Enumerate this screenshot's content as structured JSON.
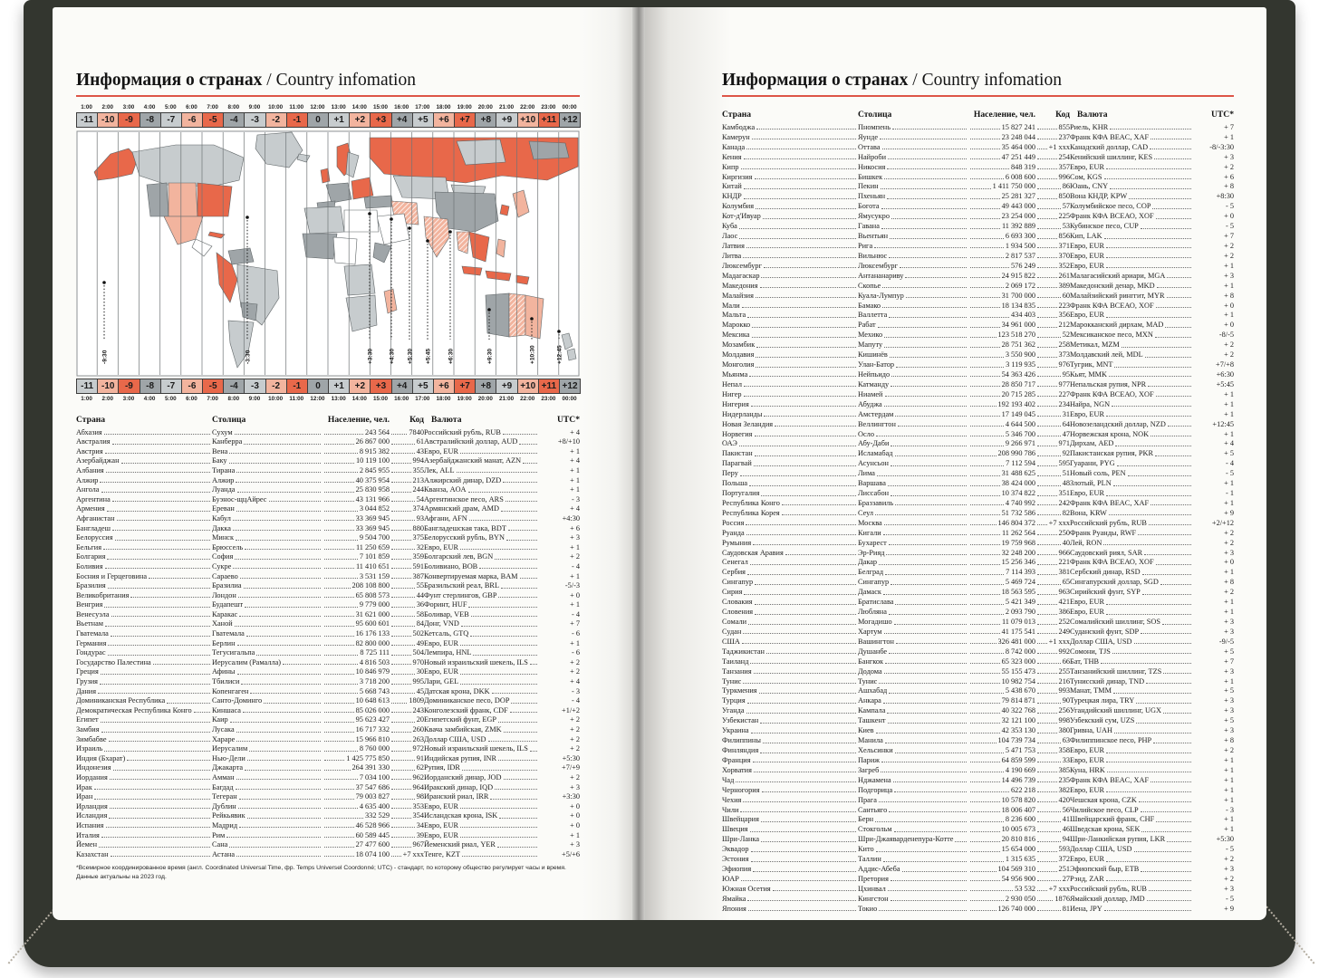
{
  "title": {
    "ru": "Информация о странах",
    "en": " / Country infomation"
  },
  "timezone_bar": {
    "times": [
      "1:00",
      "2:00",
      "3:00",
      "4:00",
      "5:00",
      "6:00",
      "7:00",
      "8:00",
      "9:00",
      "10:00",
      "11:00",
      "12:00",
      "13:00",
      "14:00",
      "15:00",
      "16:00",
      "17:00",
      "18:00",
      "19:00",
      "20:00",
      "21:00",
      "22:00",
      "23:00",
      "00:00"
    ],
    "offsets": [
      "-11",
      "-10",
      "-9",
      "-8",
      "-7",
      "-6",
      "-5",
      "-4",
      "-3",
      "-2",
      "-1",
      "0",
      "+1",
      "+2",
      "+3",
      "+4",
      "+5",
      "+6",
      "+7",
      "+8",
      "+9",
      "+10",
      "+11",
      "+12"
    ]
  },
  "map": {
    "labels": [
      "-9:30",
      "-3:30",
      "+3:30",
      "+4:30",
      "+5:30",
      "+5:45",
      "+6:30",
      "+9:30",
      "+10:30",
      "+12:45"
    ],
    "palette": {
      "orange": "#e8684a",
      "peach": "#f2b49e",
      "light_gray": "#c7ccce",
      "dark_gray": "#9fa5a8"
    }
  },
  "table_headers": {
    "country": "Страна",
    "capital": "Столица",
    "population": "Население, чел.",
    "code": "Код",
    "currency": "Валюта",
    "utc": "UTC*"
  },
  "left_rows": [
    [
      "Абхазия",
      "Сухум",
      "243 564",
      "7840",
      "Российский рубль, RUB",
      "+ 4"
    ],
    [
      "Австралия",
      "Канберра",
      "26 867 000",
      "61",
      "Австралийский доллар, AUD",
      "+8/+10"
    ],
    [
      "Австрия",
      "Вена",
      "8 915 382",
      "43",
      "Евро, EUR",
      "+ 1"
    ],
    [
      "Азербайджан",
      "Баку",
      "10 119 100",
      "994",
      "Азербайджанский манат, AZN",
      "+ 4"
    ],
    [
      "Албания",
      "Тирана",
      "2 845 955",
      "355",
      "Лек, ALL",
      "+ 1"
    ],
    [
      "Алжир",
      "Алжир",
      "40 375 954",
      "213",
      "Алжирский динар, DZD",
      "+ 1"
    ],
    [
      "Ангола",
      "Луанда",
      "25 830 958",
      "244",
      "Кванза, AOA",
      "+ 1"
    ],
    [
      "Аргентина",
      "Буэнос-щцАйрес",
      "43 131 966",
      "54",
      "Аргентинское песо, ARS",
      "- 3"
    ],
    [
      "Армения",
      "Ереван",
      "3 044 852",
      "374",
      "Армянский драм, AMD",
      "+ 4"
    ],
    [
      "Афганистан",
      "Кабул",
      "33 369 945",
      "93",
      "Афгани, AFN",
      "+4:30"
    ],
    [
      "Бангладеш",
      "Дакка",
      "33 369 945",
      "880",
      "Бангладешская така, BDT",
      "+ 6"
    ],
    [
      "Белоруссия",
      "Минск",
      "9 504 700",
      "375",
      "Белорусский рубль, BYN",
      "+ 3"
    ],
    [
      "Бельгия",
      "Брюссель",
      "11 250 659",
      "32",
      "Евро, EUR",
      "+ 1"
    ],
    [
      "Болгария",
      "София",
      "7 101 859",
      "359",
      "Болгарский лев, BGN",
      "+ 2"
    ],
    [
      "Боливия",
      "Сукре",
      "11 410 651",
      "591",
      "Боливиано, BOB",
      "- 4"
    ],
    [
      "Босния и Герцеговина",
      "Сараево",
      "3 531 159",
      "387",
      "Конвертируемая марка, BAM",
      "+ 1"
    ],
    [
      "Бразилия",
      "Бразилиа",
      "208 108 800",
      "55",
      "Бразильский реал, BRL",
      "-5/-3"
    ],
    [
      "Великобритания",
      "Лондон",
      "65 808 573",
      "44",
      "Фунт стерлингов, GBP",
      "+ 0"
    ],
    [
      "Венгрия",
      "Будапешт",
      "9 779 000",
      "36",
      "Форинт, HUF",
      "+ 1"
    ],
    [
      "Венесуэла",
      "Каракас",
      "31 621 000",
      "58",
      "Боливар, VEB",
      "- 4"
    ],
    [
      "Вьетнам",
      "Ханой",
      "95 600 601",
      "84",
      "Донг, VND",
      "+ 7"
    ],
    [
      "Гватемала",
      "Гватемала",
      "16 176 133",
      "502",
      "Кетсаль, GTQ",
      "- 6"
    ],
    [
      "Германия",
      "Берлин",
      "82 800 000",
      "49",
      "Евро, EUR",
      "+ 1"
    ],
    [
      "Гондурас",
      "Тегусигальпа",
      "8 725 111",
      "504",
      "Лемпира, HNL",
      "- 6"
    ],
    [
      "Государство Палестина",
      "Иерусалим (Рамалла)",
      "4 816 503",
      "970",
      "Новый израильский шекель, ILS",
      "+ 2"
    ],
    [
      "Греция",
      "Афины",
      "10 846 979",
      "30",
      "Евро, EUR",
      "+ 2"
    ],
    [
      "Грузия",
      "Тбилиси",
      "3 718 200",
      "995",
      "Лари, GEL",
      "+ 4"
    ],
    [
      "Дания",
      "Копенгаген",
      "5 668 743",
      "45",
      "Датская крона, DKK",
      "- 3"
    ],
    [
      "Доминиканская Республика",
      "Санто-Доминго",
      "10 648 613",
      "1809",
      "Доминиканское песо, DOP",
      "- 4"
    ],
    [
      "Демократическая Республика Конго",
      "Киншаса",
      "85 026 000",
      "243",
      "Конголезский франк, CDF",
      "+1/+2"
    ],
    [
      "Египет",
      "Каир",
      "95 623 427",
      "20",
      "Египетский фунт, EGP",
      "+ 2"
    ],
    [
      "Замбия",
      "Лусака",
      "16 717 332",
      "260",
      "Квача замбийская, ZMK",
      "+ 2"
    ],
    [
      "Зимбабве",
      "Хараре",
      "15 966 810",
      "263",
      "Доллар США, USD",
      "+ 2"
    ],
    [
      "Израиль",
      "Иерусалим",
      "8 760 000",
      "972",
      "Новый израильский шекель, ILS",
      "+ 2"
    ],
    [
      "Индия (Бхарат)",
      "Нью-Дели",
      "1 425 775 850",
      "91",
      "Индийская рупия, INR",
      "+5:30"
    ],
    [
      "Индонезия",
      "Джакарта",
      "264 391 330",
      "62",
      "Рупия, IDR",
      "+7/+9"
    ],
    [
      "Иордания",
      "Амман",
      "7 034 100",
      "962",
      "Иорданский динар, JOD",
      "+ 2"
    ],
    [
      "Ирак",
      "Багдад",
      "37 547 686",
      "964",
      "Иракский динар, IQD",
      "+ 3"
    ],
    [
      "Иран",
      "Тегеран",
      "79 003 827",
      "98",
      "Иранский риал, IRR",
      "+3:30"
    ],
    [
      "Ирландия",
      "Дублин",
      "4 635 400",
      "353",
      "Евро, EUR",
      "+ 0"
    ],
    [
      "Исландия",
      "Рейкьявик",
      "332 529",
      "354",
      "Исландская крона, ISK",
      "+ 0"
    ],
    [
      "Испания",
      "Мадрид",
      "46 528 966",
      "34",
      "Евро, EUR",
      "+ 0"
    ],
    [
      "Италия",
      "Рим",
      "60 589 445",
      "39",
      "Евро, EUR",
      "+ 1"
    ],
    [
      "Йемен",
      "Сана",
      "27 477 600",
      "967",
      "Йеменский риал, YER",
      "+ 3"
    ],
    [
      "Казахстан",
      "Астана",
      "18 074 100",
      "+7 xxx",
      "Тенге, KZT",
      "+5/+6"
    ]
  ],
  "right_rows": [
    [
      "Камбоджа",
      "Пномпень",
      "15 827 241",
      "855",
      "Риель, KHR",
      "+ 7"
    ],
    [
      "Камерун",
      "Яунде",
      "23 248 044",
      "237",
      "Франк КФА BEAC, XAF",
      "+ 1"
    ],
    [
      "Канада",
      "Оттава",
      "35 464 000",
      "+1 xxx",
      "Канадский доллар, CAD",
      "-8/-3:30"
    ],
    [
      "Кения",
      "Найроби",
      "47 251 449",
      "254",
      "Кенийский шиллинг, KES",
      "+ 3"
    ],
    [
      "Кипр",
      "Никосия",
      "848 319",
      "357",
      "Евро, EUR",
      "+ 2"
    ],
    [
      "Киргизия",
      "Бишкек",
      "6 008 600",
      "996",
      "Сом, KGS",
      "+ 6"
    ],
    [
      "Китай",
      "Пекин",
      "1 411 750 000",
      "86",
      "Юань, CNY",
      "+ 8"
    ],
    [
      "КНДР",
      "Пхеньян",
      "25 281 327",
      "850",
      "Вона КНДР, KPW",
      "+8:30"
    ],
    [
      "Колумбия",
      "Богота",
      "49 443 000",
      "57",
      "Колумбийское песо, COP",
      "- 5"
    ],
    [
      "Кот-д'Ивуар",
      "Ямусукро",
      "23 254 000",
      "225",
      "Франк КФА ВСЕАО, XOF",
      "+ 0"
    ],
    [
      "Куба",
      "Гавана",
      "11 392 889",
      "53",
      "Кубинское песо, CUP",
      "- 5"
    ],
    [
      "Лаос",
      "Вьентьян",
      "6 693 300",
      "856",
      "Кип, LAK",
      "+ 7"
    ],
    [
      "Латвия",
      "Рига",
      "1 934 500",
      "371",
      "Евро, EUR",
      "+ 2"
    ],
    [
      "Литва",
      "Вильнюс",
      "2 817 537",
      "370",
      "Евро, EUR",
      "+ 2"
    ],
    [
      "Люксембург",
      "Люксембург",
      "576 249",
      "352",
      "Евро, EUR",
      "+ 1"
    ],
    [
      "Мадагаскар",
      "Антананариву",
      "24 915 822",
      "261",
      "Малагасийский ариари, MGA",
      "+ 3"
    ],
    [
      "Македония",
      "Скопье",
      "2 069 172",
      "389",
      "Македонский денар, MKD",
      "+ 1"
    ],
    [
      "Малайзия",
      "Куала-Лумпур",
      "31 700 000",
      "60",
      "Малайзийский ринггит, MYR",
      "+ 8"
    ],
    [
      "Мали",
      "Бамако",
      "18 134 835",
      "223",
      "Франк КФА ВСЕАО, XOF",
      "+ 0"
    ],
    [
      "Мальта",
      "Валлетта",
      "434 403",
      "356",
      "Евро, EUR",
      "+ 1"
    ],
    [
      "Марокко",
      "Рабат",
      "34 961 000",
      "212",
      "Марокканский дирхам, MAD",
      "+ 0"
    ],
    [
      "Мексика",
      "Мехико",
      "123 518 270",
      "52",
      "Мексиканское песо, MXN",
      "-8/-5"
    ],
    [
      "Мозамбик",
      "Мапуту",
      "28 751 362",
      "258",
      "Метикал, MZM",
      "+ 2"
    ],
    [
      "Молдавия",
      "Кишинёв",
      "3 550 900",
      "373",
      "Молдавский лей, MDL",
      "+ 2"
    ],
    [
      "Монголия",
      "Улан-Батор",
      "3 119 935",
      "976",
      "Тугрик, MNT",
      "+7/+8"
    ],
    [
      "Мьянма",
      "Нейпьидо",
      "54 363 426",
      "95",
      "Кьят, MMK",
      "+6:30"
    ],
    [
      "Непал",
      "Катманду",
      "28 850 717",
      "977",
      "Непальская рупия, NPR",
      "+5:45"
    ],
    [
      "Нигер",
      "Ниамей",
      "20 715 285",
      "227",
      "Франк КФА ВСЕАО, XOF",
      "+ 1"
    ],
    [
      "Нигерия",
      "Абуджа",
      "192 193 402",
      "234",
      "Найра, NGN",
      "+ 1"
    ],
    [
      "Нидерланды",
      "Амстердам",
      "17 149 045",
      "31",
      "Евро, EUR",
      "+ 1"
    ],
    [
      "Новая Зеландия",
      "Веллингтон",
      "4 644 500",
      "64",
      "Новозеландский доллар, NZD",
      "+12:45"
    ],
    [
      "Норвегия",
      "Осло",
      "5 346 700",
      "47",
      "Норвежская крона, NOK",
      "+ 1"
    ],
    [
      "ОАЭ",
      "Абу-Даби",
      "9 266 971",
      "971",
      "Дирхам, AED",
      "+ 4"
    ],
    [
      "Пакистан",
      "Исламабад",
      "208 990 786",
      "92",
      "Пакистанская рупия, PKR",
      "+ 5"
    ],
    [
      "Парагвай",
      "Асунсьон",
      "7 112 594",
      "595",
      "Гуарани, PYG",
      "- 4"
    ],
    [
      "Перу",
      "Лима",
      "31 488 625",
      "51",
      "Новый соль, PEN",
      "- 5"
    ],
    [
      "Польша",
      "Варшава",
      "38 424 000",
      "48",
      "Злотый, PLN",
      "+ 1"
    ],
    [
      "Португалия",
      "Лиссабон",
      "10 374 822",
      "351",
      "Евро, EUR",
      "- 1"
    ],
    [
      "Республика Конго",
      "Браззавиль",
      "4 740 992",
      "242",
      "Франк КФА BEAC, XAF",
      "+ 1"
    ],
    [
      "Республика Корея",
      "Сеул",
      "51 732 586",
      "82",
      "Вона, KRW",
      "+ 9"
    ],
    [
      "Россия",
      "Москва",
      "146 804 372",
      "+7 xxx",
      "Российский рубль, RUB",
      "+2/+12"
    ],
    [
      "Руанда",
      "Кигали",
      "11 262 564",
      "250",
      "Франк Руанды, RWF",
      "+ 2"
    ],
    [
      "Румыния",
      "Бухарест",
      "19 759 968",
      "40",
      "Лей, RON",
      "+ 2"
    ],
    [
      "Саудовская Аравия",
      "Эр-Рияд",
      "32 248 200",
      "966",
      "Саудовский риял, SAR",
      "+ 3"
    ],
    [
      "Сенегал",
      "Дакар",
      "15 256 346",
      "221",
      "Франк КФА ВСЕАО, XOF",
      "+ 0"
    ],
    [
      "Сербия",
      "Белград",
      "7 114 393",
      "381",
      "Сербский динар, RSD",
      "+ 1"
    ],
    [
      "Сингапур",
      "Сингапур",
      "5 469 724",
      "65",
      "Сингапурский доллар, SGD",
      "+ 8"
    ],
    [
      "Сирия",
      "Дамаск",
      "18 563 595",
      "963",
      "Сирийский фунт, SYP",
      "+ 2"
    ],
    [
      "Словакия",
      "Братислава",
      "5 421 349",
      "421",
      "Евро, EUR",
      "+ 1"
    ],
    [
      "Словения",
      "Любляна",
      "2 093 790",
      "386",
      "Евро, EUR",
      "+ 1"
    ],
    [
      "Сомали",
      "Могадишо",
      "11 079 013",
      "252",
      "Сомалийский шиллинг, SOS",
      "+ 3"
    ],
    [
      "Судан",
      "Хартум",
      "41 175 541",
      "249",
      "Суданский фунт, SDP",
      "+ 3"
    ],
    [
      "США",
      "Вашингтон",
      "326 481 000",
      "+1 xxx",
      "Доллар США, USD",
      "-9/-5"
    ],
    [
      "Таджикистан",
      "Душанбе",
      "8 742 000",
      "992",
      "Сомони, TJS",
      "+ 5"
    ],
    [
      "Таиланд",
      "Бангкок",
      "65 323 000",
      "66",
      "Бат, THB",
      "+ 7"
    ],
    [
      "Танзания",
      "Додома",
      "55 155 473",
      "255",
      "Танзанийский шиллинг, TZS",
      "+ 3"
    ],
    [
      "Тунис",
      "Тунис",
      "10 982 754",
      "216",
      "Тунисский динар, TND",
      "+ 1"
    ],
    [
      "Туркмения",
      "Ашхабад",
      "5 438 670",
      "993",
      "Манат, TMM",
      "+ 5"
    ],
    [
      "Турция",
      "Анкара",
      "79 814 871",
      "90",
      "Турецкая лира, TRY",
      "+ 3"
    ],
    [
      "Уганда",
      "Кампала",
      "40 322 768",
      "256",
      "Угандийский шиллинг, UGX",
      "+ 3"
    ],
    [
      "Узбекистан",
      "Ташкент",
      "32 121 100",
      "998",
      "Узбекский сум, UZS",
      "+ 5"
    ],
    [
      "Украина",
      "Киев",
      "42 353 130",
      "380",
      "Гривна, UAH",
      "+ 3"
    ],
    [
      "Филиппины",
      "Манила",
      "104 739 734",
      "63",
      "Филиппинское песо, PHP",
      "+ 8"
    ],
    [
      "Финляндия",
      "Хельсинки",
      "5 471 753",
      "358",
      "Евро, EUR",
      "+ 2"
    ],
    [
      "Франция",
      "Париж",
      "64 859 599",
      "33",
      "Евро, EUR",
      "+ 1"
    ],
    [
      "Хорватия",
      "Загреб",
      "4 190 669",
      "385",
      "Куна, HRK",
      "+ 1"
    ],
    [
      "Чад",
      "Нджамена",
      "14 496 739",
      "235",
      "Франк КФА BEAC, XAF",
      "+ 1"
    ],
    [
      "Черногория",
      "Подгорица",
      "622 218",
      "382",
      "Евро, EUR",
      "+ 1"
    ],
    [
      "Чехия",
      "Прага",
      "10 578 820",
      "420",
      "Чешская крона, CZK",
      "+ 1"
    ],
    [
      "Чили",
      "Сантьяго",
      "18 006 407",
      "56",
      "Чилийское песо, CLP",
      "- 3"
    ],
    [
      "Швейцария",
      "Берн",
      "8 236 600",
      "41",
      "Швейцарский франк, CHF",
      "+ 1"
    ],
    [
      "Швеция",
      "Стокгольм",
      "10 005 673",
      "46",
      "Шведская крона, SEK",
      "+ 1"
    ],
    [
      "Шри-Ланка",
      "Шри-Джаяварденепура-Котте",
      "20 810 816",
      "94",
      "Шри-Ланкийская рупия, LKR",
      "+5:30"
    ],
    [
      "Эквадор",
      "Кито",
      "15 654 000",
      "593",
      "Доллар США, USD",
      "- 5"
    ],
    [
      "Эстония",
      "Таллин",
      "1 315 635",
      "372",
      "Евро, EUR",
      "+ 2"
    ],
    [
      "Эфиопия",
      "Аддис-Абеба",
      "104 569 310",
      "251",
      "Эфиопский быр, ETB",
      "+ 3"
    ],
    [
      "ЮАР",
      "Претория",
      "54 956 900",
      "27",
      "Рэнд, ZAR",
      "+ 2"
    ],
    [
      "Южная Осетия",
      "Цхинвал",
      "53 532",
      "+7 xxx",
      "Российский рубль, RUB",
      "+ 3"
    ],
    [
      "Ямайка",
      "Кингстон",
      "2 930 050",
      "1876",
      "Ямайский доллар, JMD",
      "- 5"
    ],
    [
      "Япония",
      "Токио",
      "126 740 000",
      "81",
      "Иена, JPY",
      "+ 9"
    ]
  ],
  "footnote_line1": "*Всемирное координированное время (англ. Coordinated Universal Time, фр. Temps Universel Coordonné; UTC) - стандарт, по которому общество регулирует часы и время.",
  "footnote_line2": "Данные актуальны на 2023 год."
}
